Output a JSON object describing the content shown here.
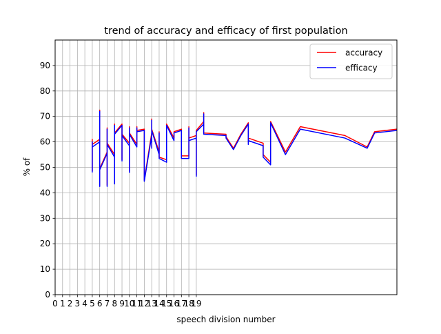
{
  "chart_data": {
    "type": "line",
    "title": "trend of accuracy and efficacy of first population",
    "xlabel": "speech division number",
    "ylabel": "% of",
    "xlim": [
      0,
      46
    ],
    "ylim": [
      0,
      100
    ],
    "x_ticks": [
      0,
      1,
      2,
      3,
      4,
      5,
      6,
      7,
      8,
      9,
      10,
      11,
      12,
      13,
      14,
      15,
      16,
      17,
      18,
      19
    ],
    "x_tick_labels": [
      "0",
      "1",
      "2",
      "3",
      "4",
      "5",
      "6",
      "7",
      "8",
      "9",
      "10",
      "11",
      "12",
      "13",
      "14",
      "15",
      "16",
      "17",
      "18",
      "19"
    ],
    "y_ticks": [
      0,
      10,
      20,
      30,
      40,
      50,
      60,
      70,
      80,
      90
    ],
    "y_tick_labels": [
      "0",
      "10",
      "20",
      "30",
      "40",
      "50",
      "60",
      "70",
      "80",
      "90"
    ],
    "grid": true,
    "legend": "top-right",
    "series": [
      {
        "name": "accuracy",
        "color": "#ff0000",
        "points": [
          [
            5,
            48.5
          ],
          [
            5,
            61
          ],
          [
            5,
            59
          ],
          [
            6,
            61
          ],
          [
            6,
            72.5
          ],
          [
            6,
            43
          ],
          [
            6,
            49.5
          ],
          [
            7,
            56
          ],
          [
            7,
            43
          ],
          [
            7,
            65.5
          ],
          [
            7,
            59.5
          ],
          [
            8,
            55
          ],
          [
            8,
            44
          ],
          [
            8,
            67
          ],
          [
            8,
            63.5
          ],
          [
            9,
            67
          ],
          [
            9,
            53
          ],
          [
            9,
            63
          ],
          [
            10,
            59.5
          ],
          [
            10,
            48.5
          ],
          [
            10,
            66
          ],
          [
            10,
            63.5
          ],
          [
            11,
            59
          ],
          [
            11,
            66
          ],
          [
            11,
            64.5
          ],
          [
            12,
            65
          ],
          [
            12,
            45
          ],
          [
            13,
            63.5
          ],
          [
            13,
            69
          ],
          [
            13,
            58
          ],
          [
            13,
            65
          ],
          [
            14,
            56
          ],
          [
            14,
            64
          ],
          [
            14,
            54
          ],
          [
            15,
            53
          ],
          [
            15,
            67
          ],
          [
            16,
            61.5
          ],
          [
            16,
            64
          ],
          [
            17,
            65
          ],
          [
            17,
            54.5
          ],
          [
            18,
            54.5
          ],
          [
            18,
            66
          ],
          [
            18,
            61.5
          ],
          [
            19,
            62.5
          ],
          [
            19,
            47
          ],
          [
            19,
            64.5
          ],
          [
            20,
            68
          ],
          [
            20,
            71.5
          ],
          [
            20,
            63.5
          ],
          [
            23,
            63
          ],
          [
            23,
            62
          ],
          [
            24,
            57.5
          ],
          [
            25,
            63
          ],
          [
            26,
            67.5
          ],
          [
            26,
            60
          ],
          [
            26,
            61.5
          ],
          [
            28,
            59.5
          ],
          [
            28,
            55
          ],
          [
            29,
            52
          ],
          [
            29,
            68
          ],
          [
            31,
            56
          ],
          [
            33,
            66
          ],
          [
            39,
            62.5
          ],
          [
            42,
            58
          ],
          [
            43,
            64
          ],
          [
            46,
            65
          ]
        ]
      },
      {
        "name": "efficacy",
        "color": "#0000ff",
        "points": [
          [
            5,
            48
          ],
          [
            5,
            60
          ],
          [
            5,
            58
          ],
          [
            6,
            60
          ],
          [
            6,
            72
          ],
          [
            6,
            42.5
          ],
          [
            6,
            49
          ],
          [
            7,
            55.5
          ],
          [
            7,
            42.5
          ],
          [
            7,
            65
          ],
          [
            7,
            59
          ],
          [
            8,
            54
          ],
          [
            8,
            43.5
          ],
          [
            8,
            66.5
          ],
          [
            8,
            63
          ],
          [
            9,
            66.5
          ],
          [
            9,
            52.5
          ],
          [
            9,
            62.5
          ],
          [
            10,
            58.5
          ],
          [
            10,
            48
          ],
          [
            10,
            65.5
          ],
          [
            10,
            63
          ],
          [
            11,
            58
          ],
          [
            11,
            65.5
          ],
          [
            11,
            64
          ],
          [
            12,
            64.5
          ],
          [
            12,
            44.5
          ],
          [
            13,
            62.5
          ],
          [
            13,
            68.5
          ],
          [
            13,
            57.5
          ],
          [
            13,
            64.5
          ],
          [
            14,
            55
          ],
          [
            14,
            63.5
          ],
          [
            14,
            53.5
          ],
          [
            15,
            52
          ],
          [
            15,
            66.5
          ],
          [
            16,
            60.5
          ],
          [
            16,
            63.5
          ],
          [
            17,
            64.5
          ],
          [
            17,
            53.5
          ],
          [
            18,
            53.5
          ],
          [
            18,
            65.5
          ],
          [
            18,
            60.5
          ],
          [
            19,
            61.5
          ],
          [
            19,
            46.5
          ],
          [
            19,
            64
          ],
          [
            20,
            67
          ],
          [
            20,
            71
          ],
          [
            20,
            63
          ],
          [
            23,
            62.5
          ],
          [
            23,
            61.5
          ],
          [
            24,
            57
          ],
          [
            25,
            62.5
          ],
          [
            26,
            67
          ],
          [
            26,
            59
          ],
          [
            26,
            60.5
          ],
          [
            28,
            58.5
          ],
          [
            28,
            54
          ],
          [
            29,
            51
          ],
          [
            29,
            67.5
          ],
          [
            31,
            55
          ],
          [
            33,
            65
          ],
          [
            39,
            61.5
          ],
          [
            42,
            57.5
          ],
          [
            43,
            63.5
          ],
          [
            46,
            64.5
          ]
        ]
      }
    ]
  }
}
